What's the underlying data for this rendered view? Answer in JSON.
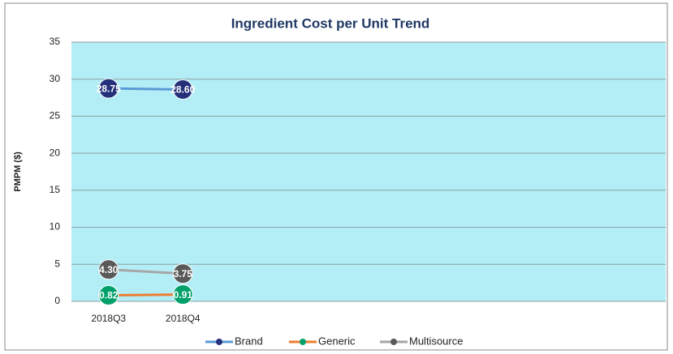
{
  "chart_data": {
    "type": "line",
    "title": "Ingredient Cost per Unit Trend",
    "y_label": "PMPM ($)",
    "categories": [
      "2018Q3",
      "2018Q4",
      null,
      null,
      null,
      null,
      null,
      null
    ],
    "series": [
      {
        "name": "Brand",
        "color": "#5b9bd5",
        "marker_color": "#25307a",
        "values": [
          28.75,
          28.6,
          null,
          null,
          null,
          null,
          null,
          null
        ],
        "value_labels": [
          "28.75",
          "28.60",
          null,
          null,
          null,
          null,
          null,
          null
        ]
      },
      {
        "name": "Generic",
        "color": "#ed7d31",
        "marker_color": "#00a06a",
        "values": [
          0.82,
          0.91,
          null,
          null,
          null,
          null,
          null,
          null
        ],
        "value_labels": [
          "0.82",
          "0.91",
          null,
          null,
          null,
          null,
          null,
          null
        ]
      },
      {
        "name": "Multisource",
        "color": "#a5a5a5",
        "marker_color": "#595959",
        "values": [
          4.3,
          3.75,
          null,
          null,
          null,
          null,
          null,
          null
        ],
        "value_labels": [
          "4.30",
          "3.75",
          null,
          null,
          null,
          null,
          null,
          null
        ]
      }
    ],
    "ylim": [
      0,
      35
    ],
    "yticks": [
      0,
      5,
      10,
      15,
      20,
      25,
      30,
      35
    ],
    "grid": true,
    "legend": "bottom"
  }
}
